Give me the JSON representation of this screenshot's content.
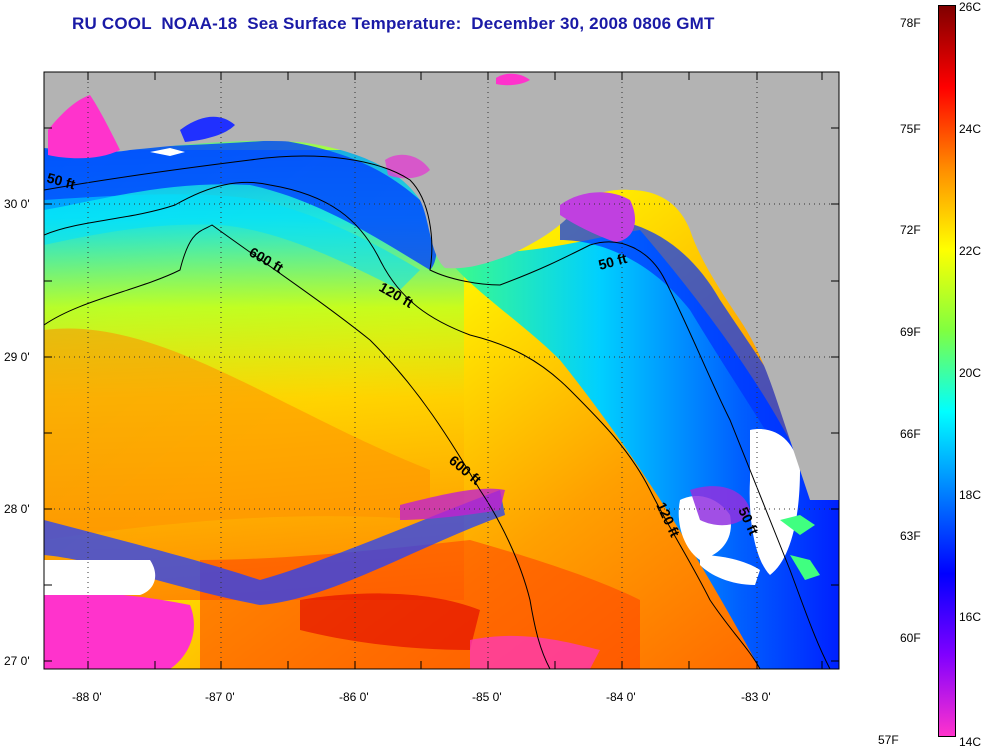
{
  "title": "RU COOL  NOAA-18  Sea Surface Temperature:  December 30, 2008 0806 GMT",
  "lat_labels": [
    "30 0'",
    "29 0'",
    "28 0'",
    "27 0'"
  ],
  "lon_labels": [
    "-88 0'",
    "-87 0'",
    "-86 0'",
    "-85 0'",
    "-84 0'",
    "-83 0'"
  ],
  "colorbar_celsius": [
    "26C",
    "24C",
    "22C",
    "20C",
    "18C",
    "16C",
    "14C"
  ],
  "colorbar_fahrenheit": [
    "78F",
    "75F",
    "72F",
    "69F",
    "66F",
    "63F",
    "60F",
    "57F"
  ],
  "contour_labels": [
    "50 ft",
    "600 ft",
    "120 ft",
    "50 ft",
    "600 ft",
    "120 ft",
    "50 ft"
  ],
  "colors": {
    "land": "#b3b3b3",
    "cloud": "#ffffff",
    "title": "#1a1aa6",
    "scale": [
      "#800000",
      "#ff0000",
      "#ff8c00",
      "#ffff00",
      "#80ff40",
      "#00ffff",
      "#0080ff",
      "#0000ff",
      "#8000ff",
      "#ff33cc"
    ]
  }
}
